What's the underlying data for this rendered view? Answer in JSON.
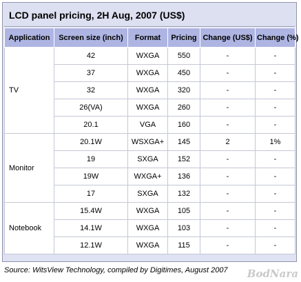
{
  "title": "LCD panel pricing, 2H Aug, 2007 (US$)",
  "headers": [
    "Application",
    "Screen size (inch)",
    "Format",
    "Pricing",
    "Change (US$)",
    "Change (%)"
  ],
  "groups": [
    {
      "application": "TV",
      "rows": [
        {
          "size": "42",
          "format": "WXGA",
          "pricing": "550",
          "change_usd": "-",
          "change_pct": "-"
        },
        {
          "size": "37",
          "format": "WXGA",
          "pricing": "450",
          "change_usd": "-",
          "change_pct": "-"
        },
        {
          "size": "32",
          "format": "WXGA",
          "pricing": "320",
          "change_usd": "-",
          "change_pct": "-"
        },
        {
          "size": "26(VA)",
          "format": "WXGA",
          "pricing": "260",
          "change_usd": "-",
          "change_pct": "-"
        },
        {
          "size": "20.1",
          "format": "VGA",
          "pricing": "160",
          "change_usd": "-",
          "change_pct": "-"
        }
      ]
    },
    {
      "application": "Monitor",
      "rows": [
        {
          "size": "20.1W",
          "format": "WSXGA+",
          "pricing": "145",
          "change_usd": "2",
          "change_pct": "1%"
        },
        {
          "size": "19",
          "format": "SXGA",
          "pricing": "152",
          "change_usd": "-",
          "change_pct": "-"
        },
        {
          "size": "19W",
          "format": "WXGA+",
          "pricing": "136",
          "change_usd": "-",
          "change_pct": "-"
        },
        {
          "size": "17",
          "format": "SXGA",
          "pricing": "132",
          "change_usd": "-",
          "change_pct": "-"
        }
      ]
    },
    {
      "application": "Notebook",
      "rows": [
        {
          "size": "15.4W",
          "format": "WXGA",
          "pricing": "105",
          "change_usd": "-",
          "change_pct": "-"
        },
        {
          "size": "14.1W",
          "format": "WXGA",
          "pricing": "103",
          "change_usd": "-",
          "change_pct": "-"
        },
        {
          "size": "12.1W",
          "format": "WXGA",
          "pricing": "115",
          "change_usd": "-",
          "change_pct": "-"
        }
      ]
    }
  ],
  "source": "Source: WitsView Technology, compiled by Digitimes, August 2007",
  "watermark": "BodNara"
}
